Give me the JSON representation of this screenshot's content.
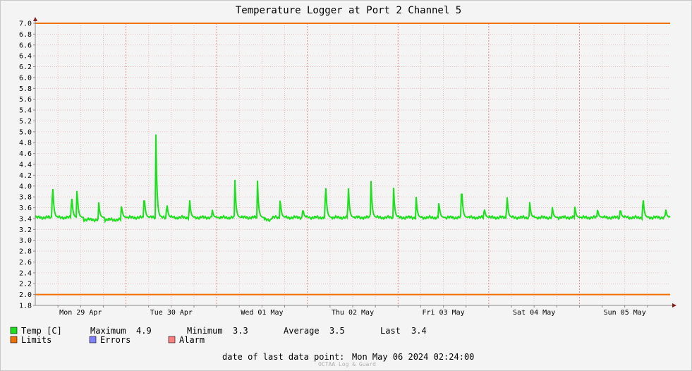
{
  "chart_data": {
    "type": "line",
    "title": "Temperature Logger at Port 2 Channel 5",
    "ylim": [
      1.8,
      7.0
    ],
    "y_ticks": [
      "7.0",
      "6.8",
      "6.6",
      "6.4",
      "6.2",
      "6.0",
      "5.8",
      "5.6",
      "5.4",
      "5.2",
      "5.0",
      "4.8",
      "4.6",
      "4.4",
      "4.2",
      "4.0",
      "3.8",
      "3.6",
      "3.4",
      "3.2",
      "3.0",
      "2.8",
      "2.6",
      "2.4",
      "2.2",
      "2.0",
      "1.8"
    ],
    "x_day_labels": [
      "Mon 29 Apr",
      "Tue 30 Apr",
      "Wed 01 May",
      "Thu 02 May",
      "Fri 03 May",
      "Sat 04 May",
      "Sun 05 May"
    ],
    "x_days_span": 7.0,
    "grid": true,
    "limits": {
      "upper": 7.0,
      "lower": 2.0
    },
    "series": [
      {
        "name": "Temp [C]",
        "baseline": 3.42,
        "spikes": [
          {
            "day": 0.19,
            "value": 4.18
          },
          {
            "day": 0.4,
            "value": 3.92
          },
          {
            "day": 0.46,
            "value": 4.02
          },
          {
            "day": 0.7,
            "value": 3.7
          },
          {
            "day": 0.95,
            "value": 3.67
          },
          {
            "day": 1.2,
            "value": 3.9
          },
          {
            "day": 1.33,
            "value": 4.95
          },
          {
            "day": 1.45,
            "value": 3.74
          },
          {
            "day": 1.7,
            "value": 3.84
          },
          {
            "day": 1.95,
            "value": 3.59
          },
          {
            "day": 2.2,
            "value": 4.18
          },
          {
            "day": 2.45,
            "value": 4.1
          },
          {
            "day": 2.7,
            "value": 3.8
          },
          {
            "day": 2.95,
            "value": 3.61
          },
          {
            "day": 3.2,
            "value": 4.2
          },
          {
            "day": 3.45,
            "value": 4.13
          },
          {
            "day": 3.7,
            "value": 4.23
          },
          {
            "day": 3.95,
            "value": 4.02
          },
          {
            "day": 4.2,
            "value": 3.8
          },
          {
            "day": 4.45,
            "value": 3.74
          },
          {
            "day": 4.7,
            "value": 4.1
          },
          {
            "day": 4.95,
            "value": 3.63
          },
          {
            "day": 5.2,
            "value": 3.91
          },
          {
            "day": 5.45,
            "value": 3.76
          },
          {
            "day": 5.7,
            "value": 3.63
          },
          {
            "day": 5.95,
            "value": 3.62
          },
          {
            "day": 6.2,
            "value": 3.59
          },
          {
            "day": 6.45,
            "value": 3.61
          },
          {
            "day": 6.7,
            "value": 3.88
          },
          {
            "day": 6.95,
            "value": 3.61
          }
        ]
      }
    ]
  },
  "legend": {
    "temp_label": "Temp [C]",
    "maximum_label": "Maximum",
    "maximum_value": "4.9",
    "minimum_label": "Minimum",
    "minimum_value": "3.3",
    "average_label": "Average",
    "average_value": "3.5",
    "last_label": "Last",
    "last_value": "3.4",
    "limits_label": "Limits",
    "errors_label": "Errors",
    "alarm_label": "Alarm"
  },
  "footer": {
    "last_point_label": "date of last data point:",
    "last_point_value": "Mon May 06 2024 02:24:00",
    "credit": "OCTAA Log & Guard"
  },
  "colors": {
    "temp": "#1de01d",
    "limits": "#f07000",
    "errors": "#7f7fff",
    "alarm": "#ff7f7f",
    "grid": "#e3b3b3",
    "axis": "#8a8a8a",
    "arrow": "#8b1a1a"
  }
}
